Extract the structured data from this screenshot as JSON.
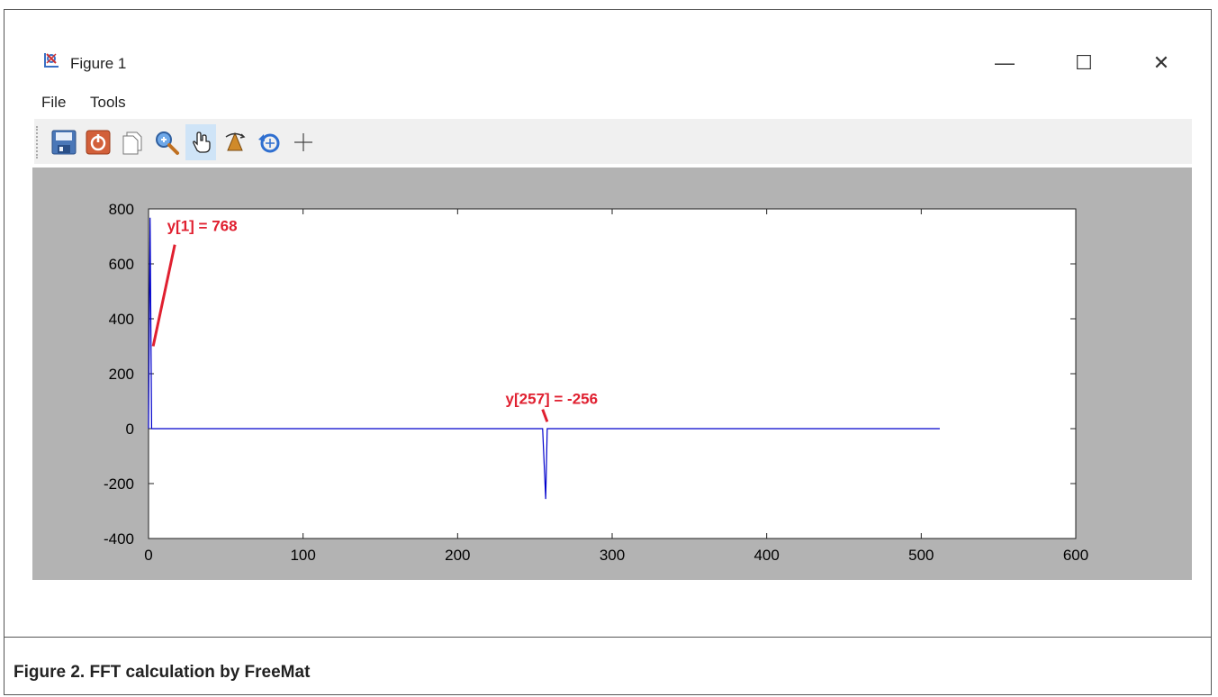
{
  "window": {
    "title": "Figure 1",
    "controls": {
      "minimize": "—",
      "maximize": "☐",
      "close": "✕"
    }
  },
  "menu": {
    "items": [
      "File",
      "Tools"
    ]
  },
  "toolbar": {
    "buttons": [
      {
        "name": "save-icon"
      },
      {
        "name": "power-icon"
      },
      {
        "name": "copy-icon"
      },
      {
        "name": "zoom-icon"
      },
      {
        "name": "pan-hand-icon",
        "active": true
      },
      {
        "name": "rotate-3d-icon"
      },
      {
        "name": "reset-view-icon"
      },
      {
        "name": "crosshair-icon"
      }
    ]
  },
  "chart_data": {
    "type": "line",
    "xlim": [
      0,
      600
    ],
    "ylim": [
      -400,
      800
    ],
    "xticks": [
      0,
      100,
      200,
      300,
      400,
      500,
      600
    ],
    "yticks": [
      -400,
      -200,
      0,
      200,
      400,
      600,
      800
    ],
    "series": [
      {
        "color": "#0000cc",
        "x": [
          0,
          1,
          2,
          3,
          255,
          256,
          257,
          258,
          512
        ],
        "y": [
          0,
          768,
          0,
          0,
          0,
          -128,
          -256,
          0,
          0
        ]
      }
    ],
    "annotations": [
      {
        "text": "y[1] = 768",
        "color": "#e02030"
      },
      {
        "text": "y[257] = -256",
        "color": "#e02030"
      }
    ],
    "plot_background": "#ffffff",
    "figure_background": "#b3b3b3"
  },
  "caption": "Figure 2.  FFT calculation by FreeMat"
}
